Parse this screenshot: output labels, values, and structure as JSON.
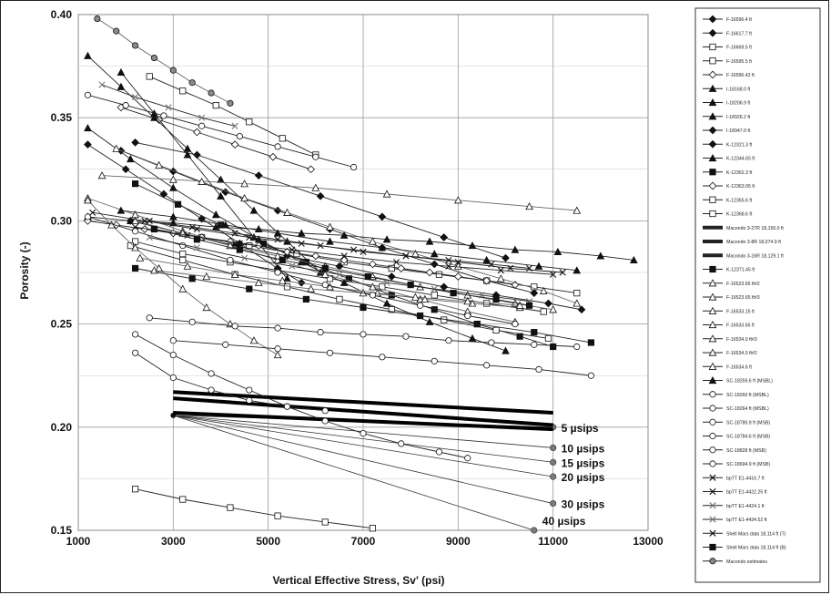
{
  "chart_data": {
    "type": "line",
    "xlabel": "Vertical Effective Stress, Sv' (psi)",
    "ylabel": "Porosity (-)",
    "xlim": [
      1000,
      13000
    ],
    "ylim": [
      0.15,
      0.4
    ],
    "xticks": [
      "1000",
      "3000",
      "5000",
      "7000",
      "9000",
      "11000",
      "13000"
    ],
    "yticks": [
      "0.15",
      "0.20",
      "0.25",
      "0.30",
      "0.35",
      "0.40"
    ],
    "grid": true,
    "legend_position": "right",
    "series": [
      {
        "name": "F-16596.4 ft",
        "marker": "diamond",
        "fill": "black",
        "x": [
          2200,
          3500,
          4800,
          6100,
          7400,
          8700,
          10000
        ],
        "y": [
          0.338,
          0.332,
          0.322,
          0.312,
          0.302,
          0.292,
          0.282
        ]
      },
      {
        "name": "F-16617.7 ft",
        "marker": "diamond",
        "fill": "black",
        "x": [
          1900,
          3000,
          4100,
          5200,
          6300,
          7400,
          8500,
          9600,
          10600
        ],
        "y": [
          0.334,
          0.324,
          0.314,
          0.305,
          0.296,
          0.287,
          0.279,
          0.271,
          0.265
        ]
      },
      {
        "name": "F-16669.5 ft",
        "marker": "square",
        "fill": "white",
        "x": [
          2200,
          3200,
          4200,
          5200,
          6300,
          7400,
          8500,
          9600,
          10800
        ],
        "y": [
          0.29,
          0.284,
          0.28,
          0.276,
          0.272,
          0.268,
          0.264,
          0.26,
          0.256
        ]
      },
      {
        "name": "F-16595.5 ft",
        "marker": "square",
        "fill": "white",
        "x": [
          2600,
          3600,
          4600,
          5600,
          6600,
          7600,
          8600,
          9600,
          10600,
          11500
        ],
        "y": [
          0.296,
          0.292,
          0.288,
          0.284,
          0.28,
          0.277,
          0.274,
          0.271,
          0.268,
          0.265
        ]
      },
      {
        "name": "F-16596.42 ft",
        "marker": "diamond",
        "fill": "white",
        "x": [
          1900,
          2700,
          3500,
          4300,
          5100,
          5900
        ],
        "y": [
          0.355,
          0.349,
          0.343,
          0.337,
          0.331,
          0.325
        ]
      },
      {
        "name": "I-18168.0 ft",
        "marker": "triangle",
        "fill": "black",
        "x": [
          1200,
          2100,
          3000,
          3900,
          4800,
          5700,
          6600,
          7500,
          8400,
          9300,
          10200,
          11100,
          12000,
          12700
        ],
        "y": [
          0.302,
          0.3,
          0.299,
          0.297,
          0.296,
          0.294,
          0.293,
          0.291,
          0.29,
          0.288,
          0.286,
          0.285,
          0.283,
          0.281
        ]
      },
      {
        "name": "I-18206.9 ft",
        "marker": "triangle",
        "fill": "black",
        "x": [
          1200,
          1900,
          2600,
          3300,
          4000,
          4700,
          5400,
          6100
        ],
        "y": [
          0.38,
          0.365,
          0.35,
          0.335,
          0.32,
          0.305,
          0.29,
          0.275
        ]
      },
      {
        "name": "I-18926.2 ft",
        "marker": "triangle",
        "fill": "black",
        "x": [
          1900,
          2600,
          3300,
          4000,
          4700,
          5400
        ],
        "y": [
          0.372,
          0.352,
          0.332,
          0.312,
          0.292,
          0.272
        ]
      },
      {
        "name": "I-18947.0 ft",
        "marker": "diamond",
        "fill": "black",
        "x": [
          1200,
          2000,
          2800,
          3600,
          4400,
          5200,
          5700
        ],
        "y": [
          0.337,
          0.325,
          0.313,
          0.301,
          0.289,
          0.277,
          0.27
        ]
      },
      {
        "name": "K-12321.3 ft",
        "marker": "diamond",
        "fill": "black",
        "x": [
          2100,
          3200,
          4300,
          5400,
          6500,
          7600,
          8700,
          9800,
          10900,
          11600
        ],
        "y": [
          0.3,
          0.294,
          0.288,
          0.283,
          0.278,
          0.273,
          0.268,
          0.264,
          0.26,
          0.257
        ]
      },
      {
        "name": "K-12344.65 ft",
        "marker": "triangle",
        "fill": "black",
        "x": [
          1200,
          2100,
          3000,
          3900,
          4800,
          5700,
          6600,
          7500,
          8400,
          9300,
          10000
        ],
        "y": [
          0.345,
          0.33,
          0.316,
          0.303,
          0.291,
          0.28,
          0.27,
          0.26,
          0.251,
          0.243,
          0.237
        ]
      },
      {
        "name": "K-12362.3 ft",
        "marker": "square",
        "fill": "black",
        "x": [
          2200,
          3100,
          4000,
          4900,
          5800,
          6700,
          7600,
          8500,
          9400,
          10300,
          11000
        ],
        "y": [
          0.318,
          0.308,
          0.298,
          0.289,
          0.28,
          0.272,
          0.264,
          0.257,
          0.25,
          0.244,
          0.239
        ]
      },
      {
        "name": "K-12363.05 ft",
        "marker": "diamond",
        "fill": "white",
        "x": [
          1200,
          1800,
          2400,
          3000,
          3600,
          4200,
          4800,
          5400,
          6000,
          6600,
          7200,
          7800,
          8400,
          9000,
          9600,
          10200
        ],
        "y": [
          0.3,
          0.298,
          0.296,
          0.294,
          0.292,
          0.29,
          0.288,
          0.285,
          0.283,
          0.281,
          0.279,
          0.277,
          0.275,
          0.273,
          0.271,
          0.269
        ]
      },
      {
        "name": "K-12365.6 ft",
        "marker": "square",
        "fill": "white",
        "x": [
          2500,
          3200,
          3900,
          4600,
          5300,
          6000
        ],
        "y": [
          0.37,
          0.363,
          0.356,
          0.348,
          0.34,
          0.332
        ]
      },
      {
        "name": "K-12368.6 ft",
        "marker": "square",
        "fill": "white",
        "x": [
          2100,
          3200,
          4300,
          5400,
          6500,
          7600,
          8700,
          9800,
          10900
        ],
        "y": [
          0.288,
          0.281,
          0.274,
          0.268,
          0.262,
          0.257,
          0.252,
          0.247,
          0.243
        ]
      },
      {
        "name": "Macondo 3-27R 18,150.0 ft",
        "marker": "none",
        "fill": "black",
        "x": [
          3000,
          11000
        ],
        "y": [
          0.217,
          0.207
        ]
      },
      {
        "name": "Macondo 3-8R 18,074.9 ft",
        "marker": "none",
        "fill": "black",
        "x": [
          3000,
          11000
        ],
        "y": [
          0.214,
          0.201
        ]
      },
      {
        "name": "Macondo 3-16R 18,129.1 ft",
        "marker": "none",
        "fill": "black",
        "x": [
          3000,
          11000
        ],
        "y": [
          0.207,
          0.199
        ]
      },
      {
        "name": "K-12371.45 ft",
        "marker": "square",
        "fill": "black",
        "x": [
          2200,
          3400,
          4600,
          5800,
          7000,
          8200,
          9400,
          10600,
          11800
        ],
        "y": [
          0.277,
          0.272,
          0.267,
          0.262,
          0.258,
          0.254,
          0.25,
          0.246,
          0.241
        ]
      },
      {
        "name": "F-16523.65 ft#2",
        "marker": "triangle",
        "fill": "white",
        "x": [
          1500,
          3000,
          4500,
          6000,
          7500,
          9000,
          10500,
          11500
        ],
        "y": [
          0.322,
          0.32,
          0.318,
          0.316,
          0.313,
          0.31,
          0.307,
          0.305
        ]
      },
      {
        "name": "F-16523.65 ft#3",
        "marker": "triangle",
        "fill": "white",
        "x": [
          1800,
          2700,
          3600,
          4500,
          5400,
          6300,
          7200,
          8100,
          9000,
          9900,
          10800,
          11500
        ],
        "y": [
          0.335,
          0.327,
          0.319,
          0.311,
          0.304,
          0.297,
          0.29,
          0.284,
          0.278,
          0.272,
          0.266,
          0.26
        ]
      },
      {
        "name": "F-16533.15 ft",
        "marker": "triangle",
        "fill": "white",
        "x": [
          1200,
          2200,
          3200,
          4200,
          5200,
          6200,
          7200,
          8200,
          9200,
          10200
        ],
        "y": [
          0.311,
          0.303,
          0.295,
          0.288,
          0.281,
          0.274,
          0.268,
          0.262,
          0.256,
          0.251
        ]
      },
      {
        "name": "F-16533.65 ft",
        "marker": "triangle",
        "fill": "white",
        "x": [
          2200,
          3200,
          4200,
          5200,
          6200,
          7200,
          8200,
          9200,
          10200,
          11000
        ],
        "y": [
          0.3,
          0.294,
          0.288,
          0.283,
          0.278,
          0.273,
          0.268,
          0.264,
          0.26,
          0.257
        ]
      },
      {
        "name": "F-16534.0 ft#3",
        "marker": "triangle",
        "fill": "white",
        "x": [
          2300,
          3300,
          4300,
          5300,
          6300,
          7300,
          8300,
          9300,
          10300
        ],
        "y": [
          0.282,
          0.278,
          0.274,
          0.271,
          0.268,
          0.265,
          0.262,
          0.26,
          0.258
        ]
      },
      {
        "name": "F-16534.0 ft#2",
        "marker": "triangle",
        "fill": "white",
        "x": [
          2600,
          3700,
          4800,
          5900,
          7000,
          8100,
          9200,
          10300
        ],
        "y": [
          0.276,
          0.273,
          0.27,
          0.267,
          0.265,
          0.263,
          0.261,
          0.259
        ]
      },
      {
        "name": "F-16534.6 ft",
        "marker": "triangle",
        "fill": "white",
        "x": [
          1200,
          1700,
          2200,
          2700,
          3200,
          3700,
          4200,
          4700,
          5200
        ],
        "y": [
          0.31,
          0.298,
          0.287,
          0.277,
          0.267,
          0.258,
          0.25,
          0.242,
          0.235
        ]
      },
      {
        "name": "SC-18259.6 ft (MSBL)",
        "marker": "triangle",
        "fill": "black",
        "x": [
          1900,
          3000,
          4100,
          5200,
          6300,
          7400,
          8500,
          9600,
          10700,
          11500
        ],
        "y": [
          0.305,
          0.302,
          0.298,
          0.294,
          0.29,
          0.287,
          0.284,
          0.281,
          0.278,
          0.276
        ]
      },
      {
        "name": "SC-18260 ft (MSBL)",
        "marker": "circle",
        "fill": "white",
        "x": [
          1200,
          2000,
          2800,
          3600,
          4400,
          5200,
          6000,
          6800
        ],
        "y": [
          0.361,
          0.356,
          0.351,
          0.346,
          0.341,
          0.336,
          0.331,
          0.326
        ]
      },
      {
        "name": "SC-18264 ft (MSBL)",
        "marker": "circle",
        "fill": "white",
        "x": [
          1200,
          2200,
          3200,
          4200,
          5200,
          6200,
          7200,
          8200,
          9200,
          10200
        ],
        "y": [
          0.302,
          0.295,
          0.288,
          0.281,
          0.275,
          0.269,
          0.264,
          0.259,
          0.254,
          0.25
        ]
      },
      {
        "name": "SC-18780.9 ft (MSB)",
        "marker": "circle",
        "fill": "white",
        "x": [
          2200,
          3000,
          3800,
          4600,
          5400,
          6200,
          7000,
          7800,
          8600,
          9200
        ],
        "y": [
          0.245,
          0.235,
          0.226,
          0.218,
          0.21,
          0.203,
          0.197,
          0.192,
          0.188,
          0.185
        ]
      },
      {
        "name": "SC-18784.6 ft (MSB)",
        "marker": "circle",
        "fill": "white",
        "x": [
          2500,
          3400,
          4300,
          5200,
          6100,
          7000,
          7900,
          8800,
          9700,
          10600,
          11500
        ],
        "y": [
          0.253,
          0.251,
          0.249,
          0.248,
          0.246,
          0.245,
          0.244,
          0.242,
          0.241,
          0.24,
          0.239
        ]
      },
      {
        "name": "SC-18828 ft (MSB)",
        "marker": "circle",
        "fill": "white",
        "x": [
          3000,
          4100,
          5200,
          6300,
          7400,
          8500,
          9600,
          10700,
          11800
        ],
        "y": [
          0.242,
          0.24,
          0.238,
          0.236,
          0.234,
          0.232,
          0.23,
          0.228,
          0.225
        ]
      },
      {
        "name": "SC-18694.9 ft (MSB)",
        "marker": "circle",
        "fill": "white",
        "x": [
          2200,
          3000,
          3800,
          4600,
          5400,
          6200
        ],
        "y": [
          0.236,
          0.224,
          0.218,
          0.213,
          0.21,
          0.208
        ]
      },
      {
        "name": "bpTT E1-4416.7 ft",
        "marker": "x",
        "fill": "black",
        "x": [
          1300,
          2400,
          3500,
          4600,
          5700,
          6800,
          7900,
          9000,
          10100,
          11200
        ],
        "y": [
          0.304,
          0.3,
          0.296,
          0.292,
          0.289,
          0.286,
          0.283,
          0.28,
          0.277,
          0.275
        ]
      },
      {
        "name": "bpTT E1-4422.25 ft",
        "marker": "x",
        "fill": "black",
        "x": [
          2500,
          3400,
          4300,
          5200,
          6100,
          7000,
          7900,
          8800,
          9700,
          10500
        ],
        "y": [
          0.3,
          0.297,
          0.294,
          0.291,
          0.288,
          0.285,
          0.283,
          0.281,
          0.279,
          0.277
        ]
      },
      {
        "name": "bpTT E1-4424.1 ft",
        "marker": "x",
        "fill": "white",
        "x": [
          1500,
          2200,
          2900,
          3600,
          4300
        ],
        "y": [
          0.366,
          0.36,
          0.355,
          0.35,
          0.346
        ]
      },
      {
        "name": "bpTT E1-4434.52 ft",
        "marker": "x",
        "fill": "white",
        "x": [
          2500,
          3500,
          4500,
          5500,
          6500,
          7500,
          8500,
          9500,
          10500
        ],
        "y": [
          0.292,
          0.287,
          0.282,
          0.278,
          0.274,
          0.27,
          0.267,
          0.264,
          0.261
        ]
      },
      {
        "name": "Shell Mars data 18,114 ft (T)",
        "marker": "x",
        "fill": "black",
        "x": [
          2200,
          3300,
          4400,
          5500,
          6600,
          7700,
          8800,
          9900,
          11000
        ],
        "y": [
          0.297,
          0.293,
          0.289,
          0.286,
          0.283,
          0.28,
          0.278,
          0.276,
          0.274
        ]
      },
      {
        "name": "Shell Mars data 18,114 ft (B)",
        "marker": "square",
        "fill": "black",
        "x": [
          2600,
          3500,
          4400,
          5300,
          6200,
          7100,
          8000,
          8900,
          9800,
          10500
        ],
        "y": [
          0.296,
          0.291,
          0.286,
          0.281,
          0.277,
          0.273,
          0.269,
          0.265,
          0.262,
          0.259
        ]
      },
      {
        "name": "Macondo estimates",
        "marker": "circle",
        "fill": "gray",
        "x": [
          1400,
          1800,
          2200,
          2600,
          3000,
          3400,
          3800,
          4200
        ],
        "y": [
          0.398,
          0.392,
          0.385,
          0.379,
          0.373,
          0.367,
          0.362,
          0.357
        ]
      }
    ],
    "rate_lines": {
      "origin": [
        3000,
        0.2057
      ],
      "lines": [
        {
          "label": "5 µsips",
          "end": [
            11000,
            0.2
          ]
        },
        {
          "label": "10 µsips",
          "end": [
            11000,
            0.19
          ]
        },
        {
          "label": "15 µsips",
          "end": [
            11000,
            0.183
          ]
        },
        {
          "label": "20 µsips",
          "end": [
            11000,
            0.176
          ]
        },
        {
          "label": "30 µsips",
          "end": [
            11000,
            0.163
          ]
        },
        {
          "label": "40 µsips",
          "end": [
            10600,
            0.15
          ]
        }
      ]
    },
    "extra_series": [
      {
        "marker": "square",
        "fill": "white",
        "x": [
          2200,
          3200,
          4200,
          5200,
          6200,
          7200
        ],
        "y": [
          0.17,
          0.165,
          0.161,
          0.157,
          0.154,
          0.151
        ]
      }
    ]
  }
}
